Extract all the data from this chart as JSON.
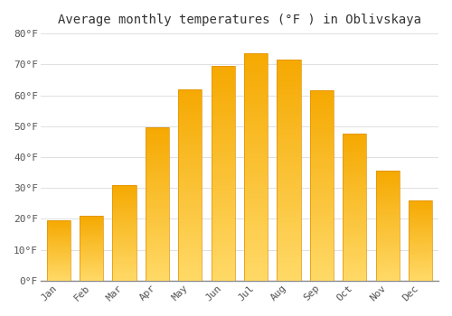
{
  "title": "Average monthly temperatures (°F ) in Oblivskaya",
  "months": [
    "Jan",
    "Feb",
    "Mar",
    "Apr",
    "May",
    "Jun",
    "Jul",
    "Aug",
    "Sep",
    "Oct",
    "Nov",
    "Dec"
  ],
  "values": [
    19.5,
    21.0,
    31.0,
    49.5,
    62.0,
    69.5,
    73.5,
    71.5,
    61.5,
    47.5,
    35.5,
    26.0
  ],
  "bar_color_dark": "#F5A800",
  "bar_color_light": "#FFD966",
  "bar_edge_color": "#E09000",
  "background_color": "#FFFFFF",
  "ylim": [
    0,
    80
  ],
  "yticks": [
    0,
    10,
    20,
    30,
    40,
    50,
    60,
    70,
    80
  ],
  "ytick_labels": [
    "0°F",
    "10°F",
    "20°F",
    "30°F",
    "40°F",
    "50°F",
    "60°F",
    "70°F",
    "80°F"
  ],
  "title_fontsize": 10,
  "tick_fontsize": 8,
  "grid_color": "#E0E0E0",
  "bar_width": 0.72
}
